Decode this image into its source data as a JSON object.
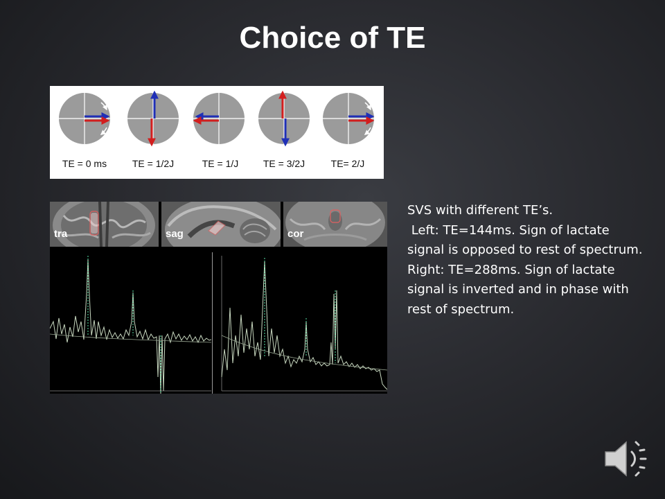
{
  "slide": {
    "title": "Choice of TE"
  },
  "vector_diagram": {
    "te_labels": [
      "TE = 0 ms",
      "TE = 1/2J",
      "TE = 1/J",
      "TE = 3/2J",
      "TE= 2/J"
    ]
  },
  "scans": {
    "labels": [
      "tra",
      "sag",
      "cor"
    ]
  },
  "description": {
    "lines": [
      "SVS with different TE’s.",
      " Left: TE=144ms. Sign of lactate signal is opposed to rest of spectrum.",
      "Right: TE=288ms. Sign of lactate signal is inverted and in phase with rest of spectrum."
    ]
  },
  "colors": {
    "background": "#2a2b30",
    "vector_red": "#d21e1e",
    "vector_blue": "#1f2fb6",
    "spectrum_line": "#c8d8c0",
    "peak_highlight": "#57e3a7"
  },
  "icons": {
    "audio": "speaker-icon"
  }
}
